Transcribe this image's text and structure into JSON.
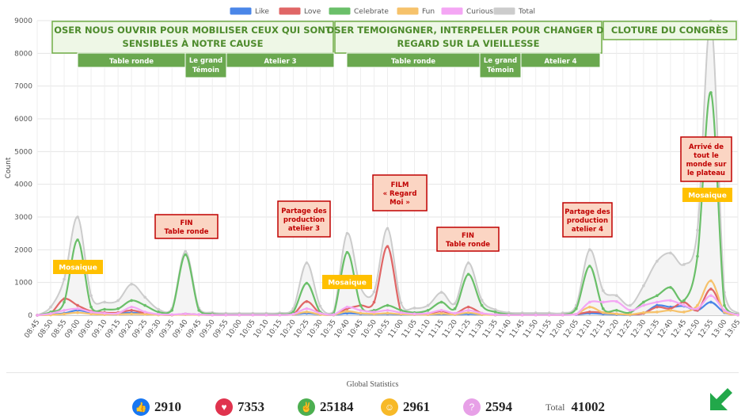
{
  "chart_data": {
    "type": "line",
    "ylabel": "Count",
    "ylim": [
      0,
      9000
    ],
    "yticks": [
      0,
      1000,
      2000,
      3000,
      4000,
      5000,
      6000,
      7000,
      8000,
      9000
    ],
    "legend_position": "top-center",
    "x": [
      "08:45",
      "08:50",
      "08:55",
      "09:00",
      "09:05",
      "09:10",
      "09:15",
      "09:20",
      "09:25",
      "09:30",
      "09:35",
      "09:40",
      "09:45",
      "09:50",
      "09:55",
      "10:00",
      "10:05",
      "10:10",
      "10:15",
      "10:20",
      "10:25",
      "10:30",
      "10:35",
      "10:40",
      "10:45",
      "10:50",
      "10:55",
      "11:00",
      "11:05",
      "11:10",
      "11:15",
      "11:20",
      "11:25",
      "11:30",
      "11:35",
      "11:40",
      "11:45",
      "11:50",
      "11:55",
      "12:00",
      "12:05",
      "12:10",
      "12:15",
      "12:20",
      "12:25",
      "12:30",
      "12:35",
      "12:40",
      "12:45",
      "12:50",
      "12:55",
      "13:00",
      "13:05"
    ],
    "series": [
      {
        "name": "Like",
        "color": "#4a86e8",
        "values": [
          0,
          20,
          60,
          150,
          80,
          40,
          60,
          80,
          50,
          20,
          10,
          40,
          20,
          10,
          10,
          10,
          10,
          10,
          10,
          20,
          60,
          20,
          10,
          60,
          40,
          30,
          40,
          20,
          20,
          20,
          30,
          20,
          40,
          20,
          10,
          10,
          10,
          10,
          10,
          10,
          20,
          60,
          40,
          20,
          10,
          60,
          300,
          250,
          280,
          150,
          400,
          80,
          10
        ]
      },
      {
        "name": "Love",
        "color": "#e06666",
        "values": [
          0,
          60,
          500,
          300,
          120,
          80,
          80,
          150,
          60,
          20,
          10,
          40,
          20,
          10,
          10,
          10,
          10,
          10,
          10,
          30,
          420,
          60,
          20,
          200,
          300,
          400,
          2100,
          100,
          60,
          50,
          120,
          50,
          250,
          60,
          20,
          10,
          10,
          10,
          10,
          10,
          30,
          100,
          80,
          40,
          20,
          60,
          250,
          200,
          400,
          150,
          800,
          100,
          10
        ]
      },
      {
        "name": "Celebrate",
        "color": "#6abf69",
        "values": [
          0,
          100,
          400,
          2300,
          250,
          180,
          200,
          450,
          300,
          100,
          150,
          1850,
          150,
          40,
          20,
          20,
          20,
          20,
          30,
          100,
          980,
          100,
          50,
          1920,
          300,
          150,
          300,
          150,
          80,
          150,
          400,
          200,
          1250,
          300,
          100,
          30,
          20,
          20,
          20,
          20,
          200,
          1500,
          200,
          150,
          80,
          400,
          600,
          850,
          450,
          1800,
          6800,
          300,
          20
        ]
      },
      {
        "name": "Fun",
        "color": "#f6c26b",
        "values": [
          0,
          10,
          40,
          80,
          40,
          20,
          30,
          40,
          30,
          10,
          10,
          20,
          10,
          10,
          10,
          10,
          10,
          10,
          10,
          20,
          100,
          20,
          10,
          120,
          60,
          40,
          60,
          30,
          20,
          20,
          50,
          20,
          80,
          20,
          10,
          10,
          10,
          10,
          10,
          10,
          30,
          250,
          80,
          40,
          20,
          80,
          100,
          150,
          100,
          300,
          1050,
          100,
          10
        ]
      },
      {
        "name": "Curious",
        "color": "#f4a6f4",
        "values": [
          0,
          50,
          150,
          200,
          100,
          60,
          60,
          250,
          100,
          30,
          20,
          40,
          20,
          10,
          10,
          10,
          10,
          10,
          10,
          30,
          200,
          60,
          20,
          250,
          150,
          100,
          150,
          80,
          40,
          60,
          150,
          60,
          150,
          60,
          20,
          10,
          10,
          10,
          10,
          10,
          30,
          400,
          400,
          420,
          150,
          300,
          400,
          450,
          300,
          200,
          600,
          150,
          10
        ]
      },
      {
        "name": "Total",
        "color": "#cccccc",
        "values": [
          0,
          250,
          1100,
          3000,
          600,
          400,
          450,
          950,
          550,
          180,
          200,
          1950,
          220,
          80,
          60,
          60,
          60,
          60,
          70,
          200,
          1600,
          280,
          110,
          2500,
          850,
          720,
          2650,
          380,
          220,
          300,
          700,
          360,
          1600,
          460,
          170,
          80,
          70,
          70,
          70,
          70,
          300,
          2000,
          750,
          600,
          300,
          900,
          1650,
          1900,
          1550,
          2600,
          9000,
          700,
          60
        ]
      }
    ],
    "annotations": {
      "sessions": [
        {
          "text": "OSER NOUS OUVRIR POUR MOBILISER CEUX QUI SONT",
          "text2": "SENSIBLES À NOTRE CAUSE"
        },
        {
          "text": "OSER TEMOIGNGNER, INTERPELLER POUR CHANGER DE",
          "text2": "REGARD SUR LA VIEILLESSE"
        },
        {
          "text": "CLOTURE DU CONGRÈS",
          "text2": ""
        }
      ],
      "segments": [
        {
          "text": "Table ronde",
          "text2": ""
        },
        {
          "text": "Le grand",
          "text2": "Témoin"
        },
        {
          "text": "Atelier 3",
          "text2": ""
        },
        {
          "text": "Table  ronde",
          "text2": ""
        },
        {
          "text": "Le grand",
          "text2": "Témoin"
        },
        {
          "text": "Atelier 4",
          "text2": ""
        }
      ],
      "events": [
        {
          "lines": [
            "FIN",
            "Table ronde"
          ]
        },
        {
          "lines": [
            "Partage des",
            "production",
            "atelier 3"
          ]
        },
        {
          "lines": [
            "FILM",
            "« Regard",
            "Moi »"
          ]
        },
        {
          "lines": [
            "FIN",
            "Table ronde"
          ]
        },
        {
          "lines": [
            "Partage des",
            "production",
            "atelier 4"
          ]
        },
        {
          "lines": [
            "Arrivé de",
            "tout le",
            "monde sur",
            "le plateau"
          ]
        }
      ],
      "highlights": [
        {
          "text": "Mosaique"
        },
        {
          "text": "Mosaique"
        },
        {
          "text": "Mosaique"
        }
      ]
    }
  },
  "stats": {
    "title": "Global Statistics",
    "like": "2910",
    "love": "7353",
    "celebrate": "25184",
    "fun": "2961",
    "curious": "2594",
    "total_label": "Total",
    "total": "41002"
  },
  "icons": {
    "like": "thumbs-up-icon",
    "love": "heart-icon",
    "celebrate": "clapping-hands-icon",
    "fun": "laughing-face-icon",
    "curious": "question-mark-icon",
    "logo": "arrow-logo-icon"
  }
}
